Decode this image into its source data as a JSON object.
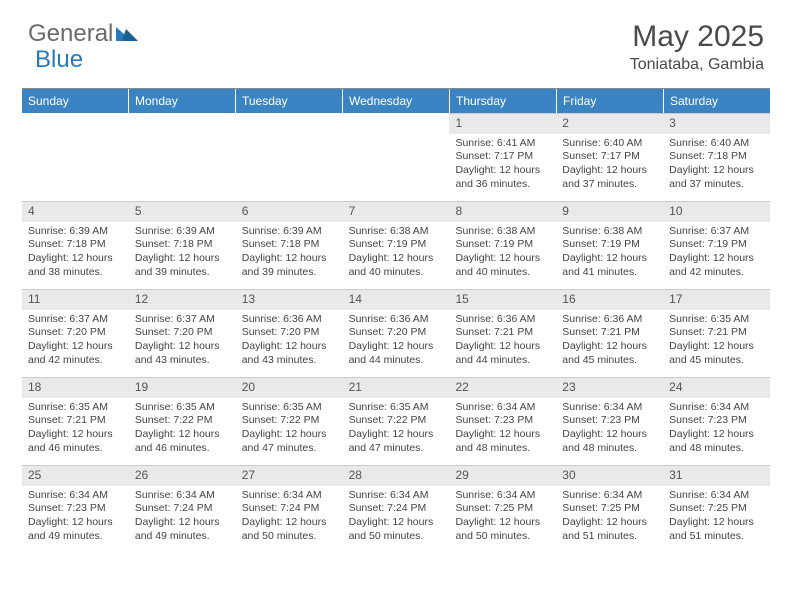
{
  "logo": {
    "general": "General",
    "blue": "Blue"
  },
  "title": {
    "month": "May 2025",
    "location": "Toniataba, Gambia"
  },
  "colors": {
    "header_bar": "#3b84c4",
    "header_text": "#ffffff",
    "daynum_bg": "#e9e9e9",
    "text": "#444444",
    "logo_blue": "#2a78bd"
  },
  "weekdays": [
    "Sunday",
    "Monday",
    "Tuesday",
    "Wednesday",
    "Thursday",
    "Friday",
    "Saturday"
  ],
  "layout": {
    "first_day_index": 4,
    "days_in_month": 31
  },
  "days": [
    {
      "n": 1,
      "sr": "6:41 AM",
      "ss": "7:17 PM",
      "dh": 12,
      "dm": 36
    },
    {
      "n": 2,
      "sr": "6:40 AM",
      "ss": "7:17 PM",
      "dh": 12,
      "dm": 37
    },
    {
      "n": 3,
      "sr": "6:40 AM",
      "ss": "7:18 PM",
      "dh": 12,
      "dm": 37
    },
    {
      "n": 4,
      "sr": "6:39 AM",
      "ss": "7:18 PM",
      "dh": 12,
      "dm": 38
    },
    {
      "n": 5,
      "sr": "6:39 AM",
      "ss": "7:18 PM",
      "dh": 12,
      "dm": 39
    },
    {
      "n": 6,
      "sr": "6:39 AM",
      "ss": "7:18 PM",
      "dh": 12,
      "dm": 39
    },
    {
      "n": 7,
      "sr": "6:38 AM",
      "ss": "7:19 PM",
      "dh": 12,
      "dm": 40
    },
    {
      "n": 8,
      "sr": "6:38 AM",
      "ss": "7:19 PM",
      "dh": 12,
      "dm": 40
    },
    {
      "n": 9,
      "sr": "6:38 AM",
      "ss": "7:19 PM",
      "dh": 12,
      "dm": 41
    },
    {
      "n": 10,
      "sr": "6:37 AM",
      "ss": "7:19 PM",
      "dh": 12,
      "dm": 42
    },
    {
      "n": 11,
      "sr": "6:37 AM",
      "ss": "7:20 PM",
      "dh": 12,
      "dm": 42
    },
    {
      "n": 12,
      "sr": "6:37 AM",
      "ss": "7:20 PM",
      "dh": 12,
      "dm": 43
    },
    {
      "n": 13,
      "sr": "6:36 AM",
      "ss": "7:20 PM",
      "dh": 12,
      "dm": 43
    },
    {
      "n": 14,
      "sr": "6:36 AM",
      "ss": "7:20 PM",
      "dh": 12,
      "dm": 44
    },
    {
      "n": 15,
      "sr": "6:36 AM",
      "ss": "7:21 PM",
      "dh": 12,
      "dm": 44
    },
    {
      "n": 16,
      "sr": "6:36 AM",
      "ss": "7:21 PM",
      "dh": 12,
      "dm": 45
    },
    {
      "n": 17,
      "sr": "6:35 AM",
      "ss": "7:21 PM",
      "dh": 12,
      "dm": 45
    },
    {
      "n": 18,
      "sr": "6:35 AM",
      "ss": "7:21 PM",
      "dh": 12,
      "dm": 46
    },
    {
      "n": 19,
      "sr": "6:35 AM",
      "ss": "7:22 PM",
      "dh": 12,
      "dm": 46
    },
    {
      "n": 20,
      "sr": "6:35 AM",
      "ss": "7:22 PM",
      "dh": 12,
      "dm": 47
    },
    {
      "n": 21,
      "sr": "6:35 AM",
      "ss": "7:22 PM",
      "dh": 12,
      "dm": 47
    },
    {
      "n": 22,
      "sr": "6:34 AM",
      "ss": "7:23 PM",
      "dh": 12,
      "dm": 48
    },
    {
      "n": 23,
      "sr": "6:34 AM",
      "ss": "7:23 PM",
      "dh": 12,
      "dm": 48
    },
    {
      "n": 24,
      "sr": "6:34 AM",
      "ss": "7:23 PM",
      "dh": 12,
      "dm": 48
    },
    {
      "n": 25,
      "sr": "6:34 AM",
      "ss": "7:23 PM",
      "dh": 12,
      "dm": 49
    },
    {
      "n": 26,
      "sr": "6:34 AM",
      "ss": "7:24 PM",
      "dh": 12,
      "dm": 49
    },
    {
      "n": 27,
      "sr": "6:34 AM",
      "ss": "7:24 PM",
      "dh": 12,
      "dm": 50
    },
    {
      "n": 28,
      "sr": "6:34 AM",
      "ss": "7:24 PM",
      "dh": 12,
      "dm": 50
    },
    {
      "n": 29,
      "sr": "6:34 AM",
      "ss": "7:25 PM",
      "dh": 12,
      "dm": 50
    },
    {
      "n": 30,
      "sr": "6:34 AM",
      "ss": "7:25 PM",
      "dh": 12,
      "dm": 51
    },
    {
      "n": 31,
      "sr": "6:34 AM",
      "ss": "7:25 PM",
      "dh": 12,
      "dm": 51
    }
  ],
  "labels": {
    "sunrise_prefix": "Sunrise: ",
    "sunset_prefix": "Sunset: ",
    "daylight_prefix": "Daylight: ",
    "hours_word": " hours and ",
    "minutes_word": " minutes."
  }
}
